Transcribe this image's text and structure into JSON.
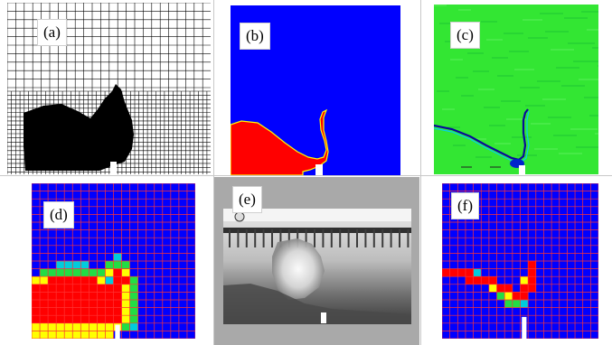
{
  "panels": {
    "a": {
      "label": "(a)"
    },
    "b": {
      "label": "(b)"
    },
    "c": {
      "label": "(c)"
    },
    "d": {
      "label": "(d)"
    },
    "e": {
      "label": "(e)"
    },
    "f": {
      "label": "(f)"
    }
  },
  "colors": {
    "water_fill": "#000000",
    "grid_line": "#000000",
    "background_blue": "#0000ff",
    "water_red": "#ff0000",
    "interface_yellow": "#ffff00",
    "interface_green": "#22dd44",
    "interface_cyan": "#00ccdd",
    "pressure_green": "#33e633",
    "cell_grid_red": "#ff3333",
    "obstacle_white": "#ffffff",
    "photo_frame_gray": "#a9a9a9"
  }
}
